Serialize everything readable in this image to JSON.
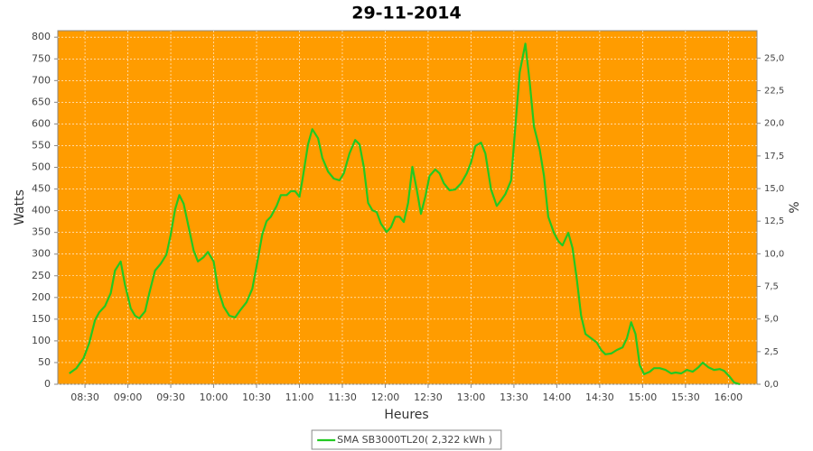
{
  "chart_data": {
    "type": "line",
    "title": "29-11-2014",
    "x_label": "Heures",
    "y_label": "Watts",
    "y2_label": "%",
    "plot_background": "#ff9c00",
    "grid": true,
    "legend": "bottom",
    "x": [
      "08:19",
      "08:24",
      "08:29",
      "08:33",
      "08:37",
      "08:40",
      "08:44",
      "08:48",
      "08:51",
      "08:55",
      "08:58",
      "09:02",
      "09:05",
      "09:08",
      "09:12",
      "09:15",
      "09:19",
      "09:23",
      "09:27",
      "09:30",
      "09:33",
      "09:36",
      "09:39",
      "09:43",
      "09:46",
      "09:49",
      "09:53",
      "09:56",
      "10:00",
      "10:03",
      "10:07",
      "10:11",
      "10:15",
      "10:18",
      "10:23",
      "10:27",
      "10:30",
      "10:34",
      "10:37",
      "10:40",
      "10:44",
      "10:47",
      "10:51",
      "10:54",
      "10:57",
      "11:00",
      "11:02",
      "11:06",
      "11:09",
      "11:13",
      "11:16",
      "11:20",
      "11:24",
      "11:28",
      "11:31",
      "11:35",
      "11:39",
      "11:42",
      "11:45",
      "11:48",
      "11:51",
      "11:54",
      "11:57",
      "12:01",
      "12:04",
      "12:07",
      "12:10",
      "12:13",
      "12:16",
      "12:19",
      "12:22",
      "12:25",
      "12:28",
      "12:31",
      "12:35",
      "12:38",
      "12:41",
      "12:45",
      "12:49",
      "12:53",
      "12:57",
      "13:00",
      "13:03",
      "13:07",
      "13:10",
      "13:14",
      "13:18",
      "13:21",
      "13:24",
      "13:28",
      "13:31",
      "13:34",
      "13:38",
      "13:41",
      "13:44",
      "13:48",
      "13:51",
      "13:54",
      "13:58",
      "14:01",
      "14:04",
      "14:08",
      "14:11",
      "14:14",
      "14:17",
      "14:20",
      "14:24",
      "14:28",
      "14:31",
      "14:34",
      "14:38",
      "14:42",
      "14:46",
      "14:49",
      "14:52",
      "14:55",
      "14:58",
      "15:01",
      "15:05",
      "15:08",
      "15:12",
      "15:16",
      "15:20",
      "15:23",
      "15:27",
      "15:31",
      "15:35",
      "15:39",
      "15:42",
      "15:46",
      "15:50",
      "15:54",
      "15:57",
      "16:01",
      "16:04",
      "16:08"
    ],
    "series": [
      {
        "name": "SMA SB3000TL20( 2,322 kWh )",
        "color": "#22c922",
        "values": [
          25,
          37,
          60,
          95,
          148,
          166,
          180,
          210,
          262,
          283,
          229,
          175,
          158,
          152,
          168,
          210,
          262,
          278,
          299,
          345,
          403,
          436,
          416,
          355,
          308,
          283,
          293,
          305,
          283,
          220,
          179,
          158,
          154,
          168,
          189,
          220,
          272,
          345,
          376,
          386,
          411,
          436,
          436,
          445,
          445,
          432,
          470,
          553,
          588,
          567,
          522,
          490,
          474,
          470,
          486,
          532,
          563,
          553,
          501,
          418,
          401,
          397,
          370,
          351,
          362,
          386,
          386,
          374,
          418,
          501,
          449,
          393,
          432,
          480,
          495,
          486,
          463,
          447,
          449,
          463,
          486,
          511,
          549,
          557,
          532,
          449,
          411,
          424,
          438,
          470,
          594,
          719,
          785,
          698,
          594,
          542,
          480,
          386,
          349,
          330,
          320,
          349,
          314,
          241,
          158,
          116,
          106,
          96,
          79,
          69,
          71,
          79,
          85,
          106,
          143,
          116,
          44,
          23,
          29,
          37,
          37,
          33,
          25,
          27,
          25,
          33,
          29,
          39,
          50,
          39,
          33,
          35,
          31,
          17,
          4,
          0
        ]
      }
    ],
    "xlim": [
      "08:11",
      "16:20"
    ],
    "xticks": [
      "08:30",
      "09:00",
      "09:30",
      "10:00",
      "10:30",
      "11:00",
      "11:30",
      "12:00",
      "12:30",
      "13:00",
      "13:30",
      "14:00",
      "14:30",
      "15:00",
      "15:30",
      "16:00"
    ],
    "ylim": [
      0,
      815
    ],
    "yticks": [
      0,
      50,
      100,
      150,
      200,
      250,
      300,
      350,
      400,
      450,
      500,
      550,
      600,
      650,
      700,
      750,
      800
    ],
    "y2lim": [
      0,
      27.1
    ],
    "y2ticks": [
      {
        "value": 0,
        "label": "0,0"
      },
      {
        "value": 2.5,
        "label": "2,5"
      },
      {
        "value": 5,
        "label": "5,0"
      },
      {
        "value": 7.5,
        "label": "7,5"
      },
      {
        "value": 10,
        "label": "10,0"
      },
      {
        "value": 12.5,
        "label": "12,5"
      },
      {
        "value": 15,
        "label": "15,0"
      },
      {
        "value": 17.5,
        "label": "17,5"
      },
      {
        "value": 20,
        "label": "20,0"
      },
      {
        "value": 22.5,
        "label": "22,5"
      },
      {
        "value": 25,
        "label": "25,0"
      }
    ]
  }
}
